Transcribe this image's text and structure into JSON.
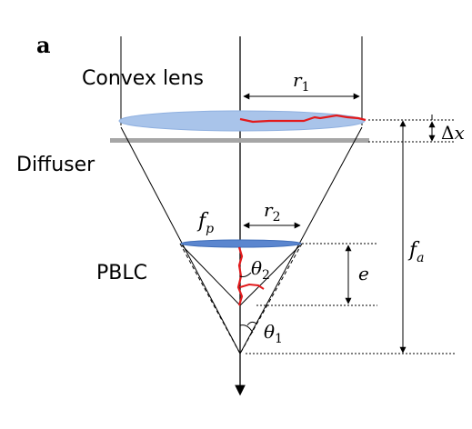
{
  "figure": {
    "panel_label": "a",
    "labels": {
      "convex_lens": "Convex lens",
      "diffuser": "Diffuser",
      "pblc": "PBLC"
    },
    "symbols": {
      "r1": {
        "base": "r",
        "sub": "1"
      },
      "r2": {
        "base": "r",
        "sub": "2"
      },
      "fp": {
        "base": "f",
        "sub": "p"
      },
      "fa": {
        "base": "f",
        "sub": "a"
      },
      "theta1": {
        "base": "θ",
        "sub": "1"
      },
      "theta2": {
        "base": "θ",
        "sub": "2"
      },
      "e": "e",
      "delta_x": "Δx"
    },
    "colors": {
      "lens_fill": "#a9c4ea",
      "lens_stroke": "#6f93cf",
      "pblc_fill": "#5b86cf",
      "diffuser": "#a6a6a6",
      "profile": "#e31a1c",
      "line": "#000000"
    }
  }
}
